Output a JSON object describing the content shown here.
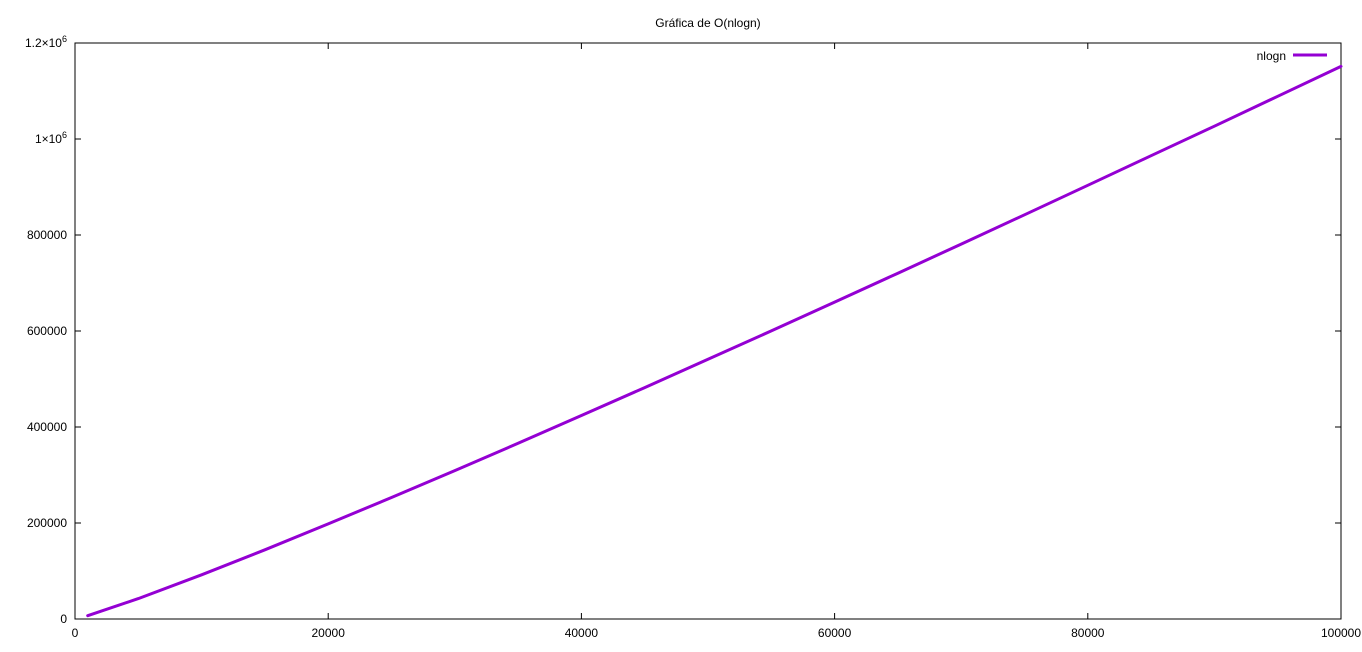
{
  "chart_data": {
    "type": "line",
    "title": "Gráfica de O(nlogn)",
    "xlabel": "",
    "ylabel": "",
    "xlim": [
      0,
      100000
    ],
    "ylim": [
      0,
      1200000
    ],
    "x_ticks": [
      0,
      20000,
      40000,
      60000,
      80000,
      100000
    ],
    "x_tick_labels": [
      "0",
      "20000",
      "40000",
      "60000",
      "80000",
      "100000"
    ],
    "y_ticks": [
      0,
      200000,
      400000,
      600000,
      800000,
      1000000,
      1200000
    ],
    "y_tick_labels": [
      "0",
      "200000",
      "400000",
      "600000",
      "800000",
      "1×10^6",
      "1.2×10^6"
    ],
    "grid": false,
    "legend_position": "top-right",
    "series": [
      {
        "name": "nlogn",
        "color": "#9400d3",
        "x": [
          1000,
          5000,
          10000,
          15000,
          20000,
          25000,
          30000,
          35000,
          40000,
          45000,
          50000,
          55000,
          60000,
          65000,
          70000,
          75000,
          80000,
          85000,
          90000,
          95000,
          100000
        ],
        "y": [
          6908,
          42586,
          92103,
          144226,
          198070,
          253218,
          309268,
          366109,
          423865,
          482168,
          540988,
          600312,
          660133,
          720407,
          781000,
          842157,
          903472,
          965207,
          1026675,
          1088930,
          1151293
        ]
      }
    ]
  }
}
